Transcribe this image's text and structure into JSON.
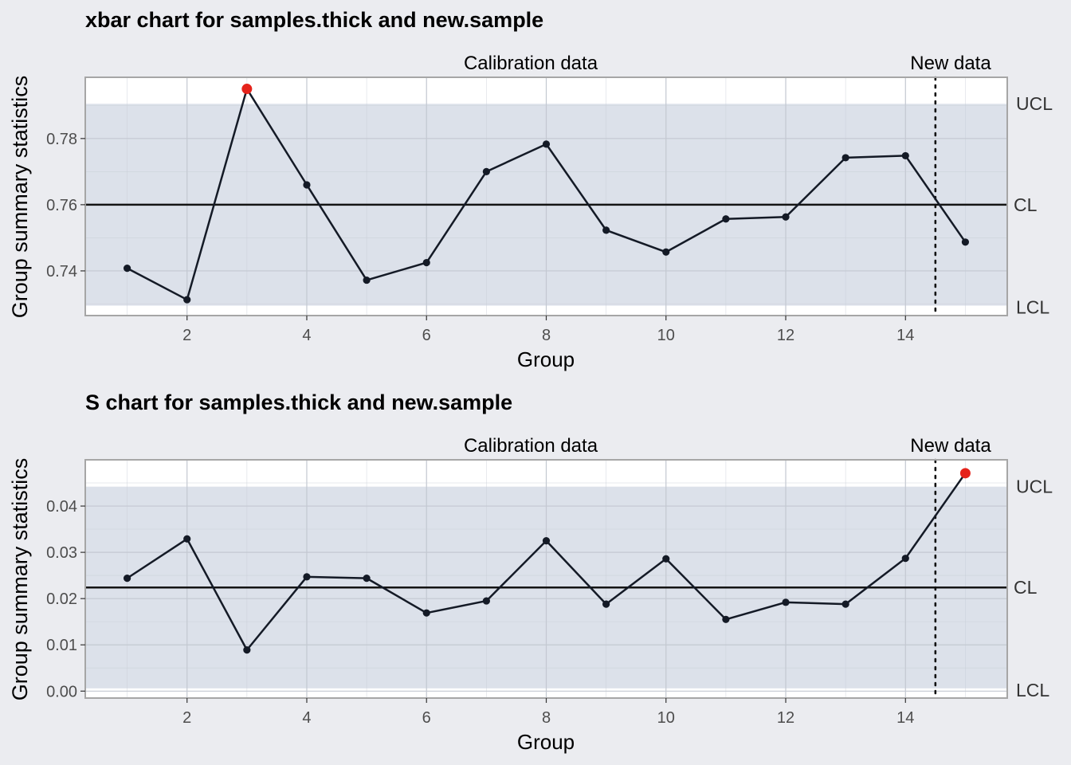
{
  "chart_data": [
    {
      "type": "line",
      "title": "xbar chart for samples.thick and new.sample",
      "xlabel": "Group",
      "ylabel": "Group summary statistics",
      "section_labels": {
        "calibration": "Calibration data",
        "new": "New data"
      },
      "limit_labels": {
        "ucl": "UCL",
        "cl": "CL",
        "lcl": "LCL"
      },
      "xlim": [
        0.3,
        15.7
      ],
      "ylim": [
        0.7265,
        0.7985
      ],
      "x_ticks": [
        2,
        4,
        6,
        8,
        10,
        12,
        14
      ],
      "y_ticks": [
        0.74,
        0.76,
        0.78
      ],
      "y_tick_labels": [
        "0.74",
        "0.76",
        "0.78"
      ],
      "x_tick_labels": [
        "2",
        "4",
        "6",
        "8",
        "10",
        "12",
        "14"
      ],
      "limits": {
        "ucl": 0.7905,
        "cl": 0.76,
        "lcl": 0.7295
      },
      "new_data_start": 14.5,
      "x": [
        1,
        2,
        3,
        4,
        5,
        6,
        7,
        8,
        9,
        10,
        11,
        12,
        13,
        14,
        15
      ],
      "values": [
        0.7408,
        0.7313,
        0.795,
        0.766,
        0.7372,
        0.7425,
        0.77,
        0.7783,
        0.7523,
        0.7457,
        0.7557,
        0.7563,
        0.7742,
        0.7748,
        0.7487
      ],
      "violations": [
        3
      ],
      "colors": {
        "line": "#141A26",
        "point": "#141A26",
        "violation": "#E5231B",
        "band": "#DCE1EA"
      }
    },
    {
      "type": "line",
      "title": "S chart for samples.thick and new.sample",
      "xlabel": "Group",
      "ylabel": "Group summary statistics",
      "section_labels": {
        "calibration": "Calibration data",
        "new": "New data"
      },
      "limit_labels": {
        "ucl": "UCL",
        "cl": "CL",
        "lcl": "LCL"
      },
      "xlim": [
        0.3,
        15.7
      ],
      "ylim": [
        -0.0015,
        0.05
      ],
      "x_ticks": [
        2,
        4,
        6,
        8,
        10,
        12,
        14
      ],
      "y_ticks": [
        0.0,
        0.01,
        0.02,
        0.03,
        0.04
      ],
      "y_tick_labels": [
        "0.00",
        "0.01",
        "0.02",
        "0.03",
        "0.04"
      ],
      "x_tick_labels": [
        "2",
        "4",
        "6",
        "8",
        "10",
        "12",
        "14"
      ],
      "limits": {
        "ucl": 0.0442,
        "cl": 0.0224,
        "lcl": 0.0006
      },
      "new_data_start": 14.5,
      "x": [
        1,
        2,
        3,
        4,
        5,
        6,
        7,
        8,
        9,
        10,
        11,
        12,
        13,
        14,
        15
      ],
      "values": [
        0.0244,
        0.0329,
        0.0089,
        0.0247,
        0.0244,
        0.0169,
        0.0195,
        0.0325,
        0.0188,
        0.0286,
        0.0155,
        0.0192,
        0.0188,
        0.0287,
        0.0471
      ],
      "violations": [
        15
      ],
      "colors": {
        "line": "#141A26",
        "point": "#141A26",
        "violation": "#E5231B",
        "band": "#DCE1EA"
      }
    }
  ]
}
